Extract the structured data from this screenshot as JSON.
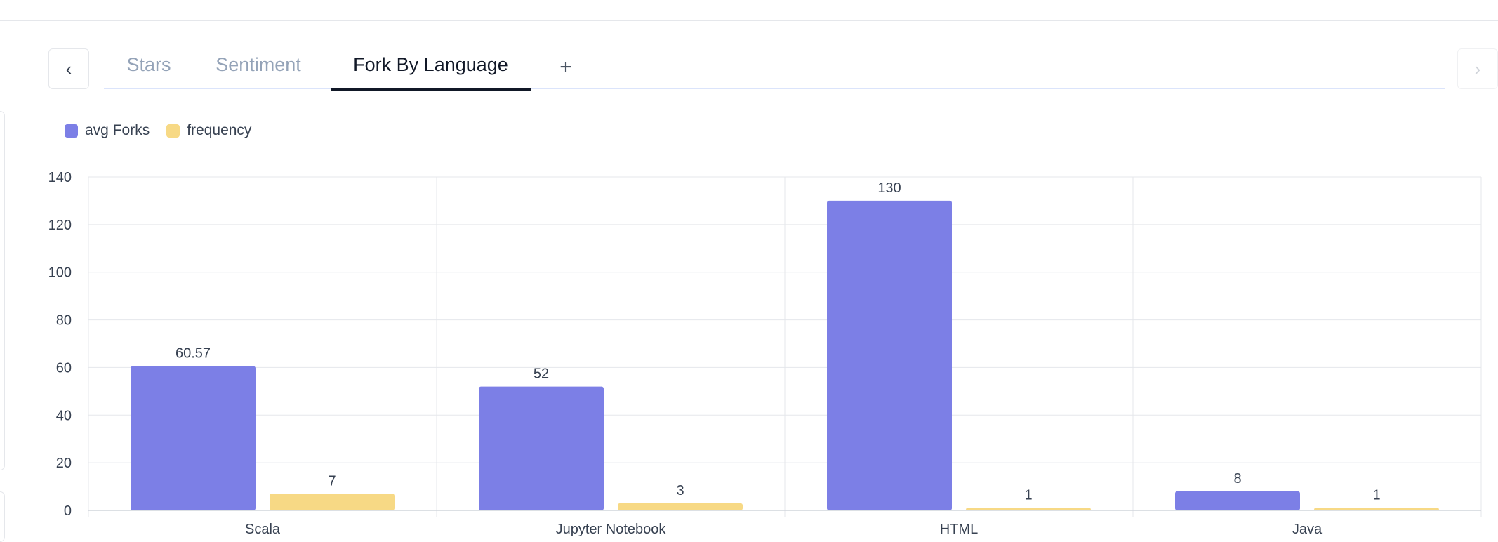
{
  "navigation": {
    "prev_icon": "chevron-left-icon",
    "next_icon": "chevron-right-icon",
    "prev_glyph": "‹",
    "next_glyph": "›"
  },
  "tabs": [
    {
      "label": "Stars",
      "active": false
    },
    {
      "label": "Sentiment",
      "active": false
    },
    {
      "label": "Fork By Language",
      "active": true
    }
  ],
  "add_tab": {
    "glyph": "+",
    "icon": "plus-icon"
  },
  "colors": {
    "avg_forks": "#7c7fe6",
    "frequency": "#f7d985",
    "grid": "#e5e7eb",
    "axis_text": "#374151"
  },
  "chart_data": {
    "type": "bar",
    "categories": [
      "Scala",
      "Jupyter Notebook",
      "HTML",
      "Java"
    ],
    "series": [
      {
        "name": "avg Forks",
        "values": [
          60.57,
          52,
          130,
          8
        ]
      },
      {
        "name": "frequency",
        "values": [
          7,
          3,
          1,
          1
        ]
      }
    ],
    "ylim": [
      0,
      140
    ],
    "yticks": [
      0,
      20,
      40,
      60,
      80,
      100,
      120,
      140
    ],
    "grid": true,
    "legend": "top-left",
    "data_labels": true
  }
}
